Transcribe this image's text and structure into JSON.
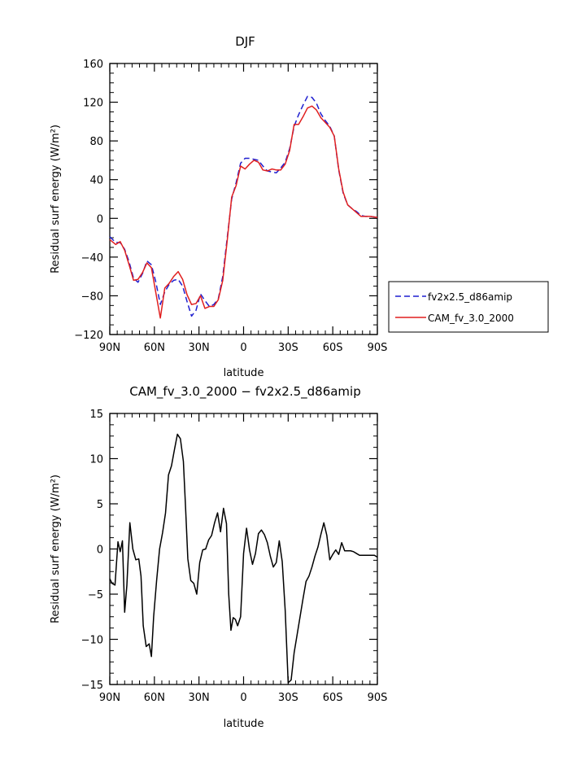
{
  "chart_data": [
    {
      "type": "line",
      "title": "DJF",
      "xlabel": "latitude",
      "ylabel": "Residual surf energy (W/m²)",
      "xlim": [
        -90,
        90
      ],
      "ylim": [
        -120,
        160
      ],
      "xticks": [
        -90,
        -60,
        -30,
        0,
        30,
        60,
        90
      ],
      "xticklabels": [
        "90N",
        "60N",
        "30N",
        "0",
        "30S",
        "60S",
        "90S"
      ],
      "yticks": [
        -120,
        -80,
        -40,
        0,
        40,
        80,
        120,
        160
      ],
      "yticklabels": [
        "−120",
        "−80",
        "−40",
        "0",
        "40",
        "80",
        "120",
        "160"
      ],
      "grid": false,
      "legend_position": "right",
      "series": [
        {
          "name": "fv2x2.5_d86amip",
          "color": "#1f1fd0",
          "dash": true,
          "x": [
            -90,
            -86,
            -83,
            -80,
            -77,
            -74,
            -71,
            -68,
            -65,
            -62,
            -59,
            -56,
            -53,
            -50,
            -47,
            -44,
            -41,
            -38,
            -35,
            -32,
            -29,
            -26,
            -23,
            -20,
            -17,
            -14,
            -11,
            -8,
            -5,
            -2,
            1,
            4,
            7,
            10,
            13,
            16,
            19,
            22,
            25,
            28,
            31,
            34,
            37,
            40,
            43,
            46,
            49,
            52,
            55,
            58,
            61,
            64,
            67,
            70,
            73,
            76,
            79,
            82,
            85,
            90
          ],
          "y": [
            -19,
            -25,
            -25,
            -32,
            -45,
            -62,
            -66,
            -57,
            -44,
            -48,
            -66,
            -89,
            -76,
            -68,
            -64,
            -63,
            -70,
            -86,
            -101,
            -95,
            -78,
            -85,
            -91,
            -89,
            -83,
            -60,
            -20,
            20,
            37,
            57,
            62,
            62,
            61,
            60,
            54,
            49,
            48,
            47,
            52,
            58,
            72,
            95,
            107,
            117,
            126,
            125,
            119,
            108,
            101,
            95,
            85,
            50,
            26,
            14,
            10,
            7,
            3,
            2,
            2,
            1
          ]
        },
        {
          "name": "CAM_fv_3.0_2000",
          "color": "#e01f1f",
          "dash": false,
          "x": [
            -90,
            -86,
            -83,
            -80,
            -77,
            -74,
            -71,
            -68,
            -65,
            -62,
            -59,
            -56,
            -53,
            -50,
            -47,
            -44,
            -41,
            -38,
            -35,
            -32,
            -29,
            -26,
            -23,
            -20,
            -17,
            -14,
            -11,
            -8,
            -5,
            -2,
            1,
            4,
            7,
            10,
            13,
            16,
            19,
            22,
            25,
            28,
            31,
            34,
            37,
            40,
            43,
            46,
            49,
            52,
            55,
            58,
            61,
            64,
            67,
            70,
            73,
            76,
            79,
            82,
            85,
            90
          ],
          "y": [
            -22,
            -27,
            -24,
            -33,
            -48,
            -64,
            -63,
            -56,
            -46,
            -51,
            -77,
            -103,
            -72,
            -67,
            -60,
            -55,
            -63,
            -79,
            -89,
            -88,
            -80,
            -93,
            -91,
            -91,
            -84,
            -64,
            -23,
            22,
            34,
            54,
            51,
            56,
            60,
            58,
            50,
            49,
            51,
            50,
            50,
            56,
            70,
            97,
            97,
            105,
            114,
            116,
            112,
            104,
            99,
            94,
            85,
            51,
            27,
            14,
            10,
            6,
            2,
            2,
            2,
            1
          ]
        }
      ]
    },
    {
      "type": "line",
      "title": "CAM_fv_3.0_2000 − fv2x2.5_d86amip",
      "xlabel": "latitude",
      "ylabel": "Residual surf energy (W/m²)",
      "xlim": [
        -90,
        90
      ],
      "ylim": [
        -15,
        15
      ],
      "xticks": [
        -90,
        -60,
        -30,
        0,
        30,
        60,
        90
      ],
      "xticklabels": [
        "90N",
        "60N",
        "30N",
        "0",
        "30S",
        "60S",
        "90S"
      ],
      "yticks": [
        -15,
        -10,
        -5,
        0,
        5,
        10,
        15
      ],
      "yticklabels": [
        "−15",
        "−10",
        "−5",
        "0",
        "5",
        "10",
        "15"
      ],
      "grid": false,
      "series": [
        {
          "color": "#000000",
          "dash": false,
          "x": [
            -90,
            -88.5,
            -86.5,
            -84.5,
            -83,
            -81.5,
            -80,
            -78.5,
            -76.5,
            -74.5,
            -72.5,
            -70.5,
            -69,
            -67.5,
            -65.5,
            -63.5,
            -62,
            -60.5,
            -58.5,
            -56.5,
            -54.5,
            -52.5,
            -50.5,
            -48.5,
            -46.5,
            -44.5,
            -42.5,
            -40.5,
            -39,
            -37.5,
            -35.5,
            -33.5,
            -31.5,
            -29.5,
            -27.5,
            -25.5,
            -23.5,
            -21.5,
            -19.5,
            -17.5,
            -15.5,
            -13.5,
            -11.5,
            -10,
            -8.5,
            -7,
            -5.5,
            -4,
            -2,
            0,
            2,
            4,
            6,
            8,
            10,
            12,
            14,
            16,
            18,
            20,
            22,
            24,
            26,
            28,
            30,
            32,
            34,
            36,
            38,
            40,
            42,
            44,
            46,
            48,
            50,
            52,
            54,
            56,
            58,
            60,
            62,
            64,
            66,
            68,
            70,
            72,
            74,
            76,
            78,
            80,
            82,
            84,
            86,
            88,
            90
          ],
          "y": [
            -3.3,
            -3.8,
            -4,
            0.8,
            -0.3,
            0.9,
            -7,
            -4,
            2.9,
            0,
            -1.2,
            -1.1,
            -3,
            -8.5,
            -10.8,
            -10.5,
            -11.9,
            -7.5,
            -3.5,
            0,
            1.8,
            4,
            8.2,
            9.2,
            11,
            12.7,
            12.2,
            9.7,
            4.5,
            -1.1,
            -3.5,
            -3.8,
            -5,
            -1.5,
            -0.1,
            0,
            1,
            1.5,
            2.9,
            4,
            1.9,
            4.5,
            2.8,
            -5,
            -9,
            -7.6,
            -7.8,
            -8.5,
            -7.5,
            -0.5,
            2.3,
            -0.1,
            -1.7,
            -0.5,
            1.7,
            2.1,
            1.6,
            0.7,
            -0.8,
            -2,
            -1.5,
            0.9,
            -1.4,
            -6.8,
            -14.8,
            -14.5,
            -11.5,
            -9.5,
            -7.5,
            -5.5,
            -3.6,
            -3,
            -2,
            -0.8,
            0.2,
            1.6,
            2.9,
            1.5,
            -1.2,
            -0.6,
            -0.1,
            -0.6,
            0.7,
            -0.2,
            -0.2,
            -0.2,
            -0.3,
            -0.5,
            -0.7,
            -0.7,
            -0.7,
            -0.7,
            -0.7,
            -0.7,
            -0.9
          ]
        }
      ]
    }
  ]
}
